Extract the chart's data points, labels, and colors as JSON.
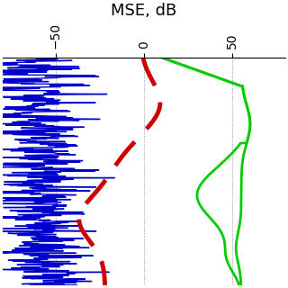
{
  "title": "MSE, dB",
  "title_fontsize": 13,
  "background_color": "#ffffff",
  "xlim": [
    -80,
    80
  ],
  "ylim": [
    0,
    240
  ],
  "xticks": [
    -50,
    0,
    50
  ],
  "grid": true,
  "blue_color": "#0000cc",
  "red_color": "#cc0000",
  "green_color": "#00cc00",
  "blue_lw": 1.0,
  "red_lw": 3.5,
  "green_lw": 2.0
}
